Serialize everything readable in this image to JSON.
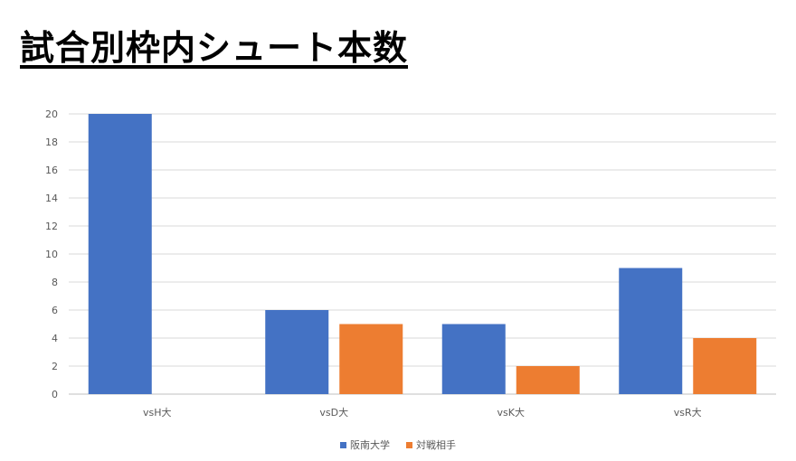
{
  "chart_data": {
    "type": "bar",
    "title": "試合別枠内シュート本数",
    "categories": [
      "vsH大",
      "vsD大",
      "vsK大",
      "vsR大"
    ],
    "series": [
      {
        "name": "阪南大学",
        "color": "#4472C4",
        "values": [
          20,
          6,
          5,
          9
        ]
      },
      {
        "name": "対戦相手",
        "color": "#ED7D31",
        "values": [
          0,
          5,
          2,
          4
        ]
      }
    ],
    "ylim": [
      0,
      20
    ],
    "yticks": [
      0,
      2,
      4,
      6,
      8,
      10,
      12,
      14,
      16,
      18,
      20
    ],
    "grid": true,
    "legend_position": "bottom"
  }
}
